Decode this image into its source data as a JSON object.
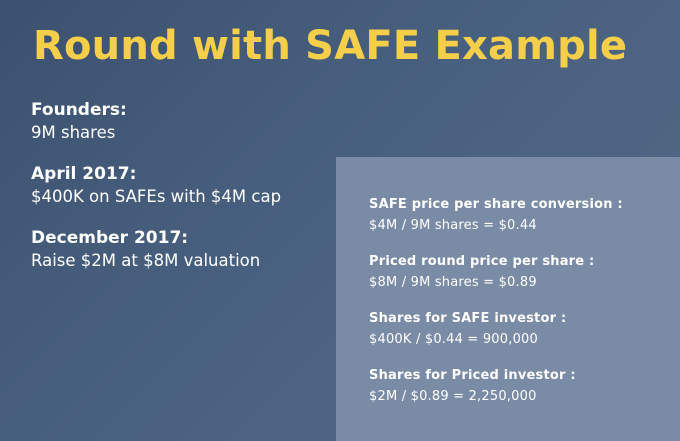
{
  "title": "Round with SAFE Example",
  "facts": [
    {
      "label": "Founders:",
      "value": "9M shares"
    },
    {
      "label": "April 2017:",
      "value": "$400K on SAFEs with $4M cap"
    },
    {
      "label": "December 2017:",
      "value": "Raise $2M at $8M valuation"
    }
  ],
  "calculations": [
    {
      "label": "SAFE price per share conversion :",
      "value": "$4M / 9M shares = $0.44"
    },
    {
      "label": "Priced round price per share :",
      "value": "$8M / 9M shares = $0.89"
    },
    {
      "label": "Shares for SAFE investor :",
      "value": "$400K / $0.44 = 900,000"
    },
    {
      "label": "Shares for Priced investor :",
      "value": "$2M / $0.89 = 2,250,000"
    }
  ],
  "colors": {
    "background": "#48607f",
    "title": "#f6cf4a",
    "panel": "#7a8ba5",
    "text": "#ffffff"
  }
}
